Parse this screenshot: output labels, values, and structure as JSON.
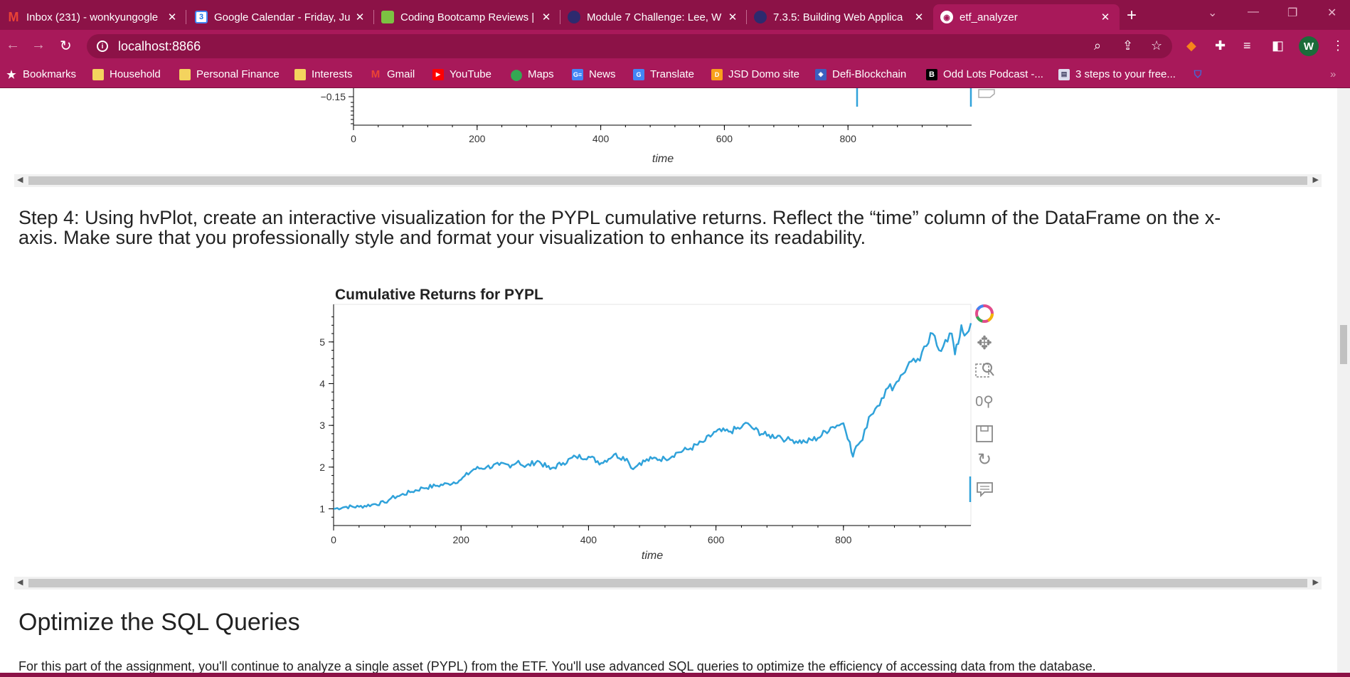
{
  "tabs": [
    {
      "title": "Inbox (231) - wonkyungogle",
      "icon": "gmail-icon",
      "active": false
    },
    {
      "title": "Google Calendar - Friday, Ju",
      "icon": "calendar-icon",
      "active": false
    },
    {
      "title": "Coding Bootcamp Reviews |",
      "icon": "bootcamp-icon",
      "active": false
    },
    {
      "title": "Module 7 Challenge: Lee, W",
      "icon": "canvas-icon",
      "active": false
    },
    {
      "title": "7.3.5: Building Web Applica",
      "icon": "canvas-icon",
      "active": false
    },
    {
      "title": "etf_analyzer",
      "icon": "globe-icon",
      "active": true
    }
  ],
  "address": {
    "url": "localhost:8866"
  },
  "bookmarks": [
    {
      "label": "Bookmarks",
      "icon": "star-icon"
    },
    {
      "label": "Household",
      "icon": "folder-icon"
    },
    {
      "label": "Personal Finance",
      "icon": "folder-icon"
    },
    {
      "label": "Interests",
      "icon": "folder-icon"
    },
    {
      "label": "Gmail",
      "icon": "gmail-icon"
    },
    {
      "label": "YouTube",
      "icon": "youtube-icon"
    },
    {
      "label": "Maps",
      "icon": "maps-icon"
    },
    {
      "label": "News",
      "icon": "news-icon"
    },
    {
      "label": "Translate",
      "icon": "translate-icon"
    },
    {
      "label": "JSD Domo site",
      "icon": "domo-icon"
    },
    {
      "label": "Defi-Blockchain",
      "icon": "defi-icon"
    },
    {
      "label": "Odd Lots Podcast -...",
      "icon": "bloomberg-icon"
    },
    {
      "label": "3 steps to your free...",
      "icon": "page-icon"
    }
  ],
  "colors": {
    "brand": "#a8195a",
    "tab_bar": "#8c1247",
    "line": "#30a2da"
  },
  "prev_chart": {
    "ytick": "−0.15",
    "xticks": [
      "0",
      "200",
      "400",
      "600",
      "800"
    ],
    "xlabel": "time"
  },
  "step4": {
    "line1": "Step 4: Using hvPlot, create an interactive visualization for the PYPL cumulative returns. Reflect the “time” column of the DataFrame on the x-",
    "line2": "axis. Make sure that you professionally style and format your visualization to enhance its readability."
  },
  "chart_data": {
    "type": "line",
    "title": "Cumulative Returns for PYPL",
    "xlabel": "time",
    "ylabel": "",
    "xlim": [
      0,
      1000
    ],
    "ylim": [
      0.6,
      5.9
    ],
    "xticks": [
      0,
      200,
      400,
      600,
      800
    ],
    "yticks": [
      1,
      2,
      3,
      4,
      5
    ],
    "grid": false,
    "series": [
      {
        "x": [
          0,
          20,
          40,
          60,
          80,
          90,
          100,
          120,
          140,
          160,
          180,
          200,
          220,
          240,
          260,
          280,
          290,
          300,
          320,
          340,
          360,
          380,
          400,
          420,
          440,
          460,
          470,
          480,
          500,
          520,
          540,
          560,
          580,
          600,
          620,
          640,
          650,
          660,
          680,
          700,
          710,
          720,
          740,
          760,
          780,
          790,
          800,
          810,
          815,
          820,
          830,
          840,
          850,
          860,
          870,
          880,
          890,
          900,
          910,
          920,
          930,
          940,
          950,
          960,
          970,
          975,
          980,
          985,
          990,
          1000
        ],
        "y": [
          1.0,
          1.05,
          1.05,
          1.1,
          1.15,
          1.25,
          1.3,
          1.4,
          1.5,
          1.55,
          1.6,
          1.7,
          1.95,
          2.0,
          2.05,
          2.05,
          2.15,
          2.0,
          2.15,
          1.95,
          2.1,
          2.25,
          2.25,
          2.1,
          2.3,
          2.2,
          1.95,
          2.1,
          2.2,
          2.2,
          2.35,
          2.45,
          2.6,
          2.85,
          2.85,
          2.95,
          3.05,
          2.9,
          2.75,
          2.75,
          2.65,
          2.65,
          2.6,
          2.7,
          2.95,
          3.0,
          3.05,
          2.6,
          2.25,
          2.5,
          2.65,
          3.2,
          3.4,
          3.65,
          3.9,
          3.95,
          4.2,
          4.4,
          4.6,
          4.55,
          4.9,
          5.2,
          4.8,
          5.05,
          5.2,
          4.7,
          4.95,
          5.4,
          5.15,
          5.45
        ]
      }
    ]
  },
  "section": {
    "heading": "Optimize the SQL Queries",
    "paragraph": "For this part of the assignment, you'll continue to analyze a single asset (PYPL) from the ETF. You'll use advanced SQL queries to optimize the efficiency of accessing data from the database."
  }
}
